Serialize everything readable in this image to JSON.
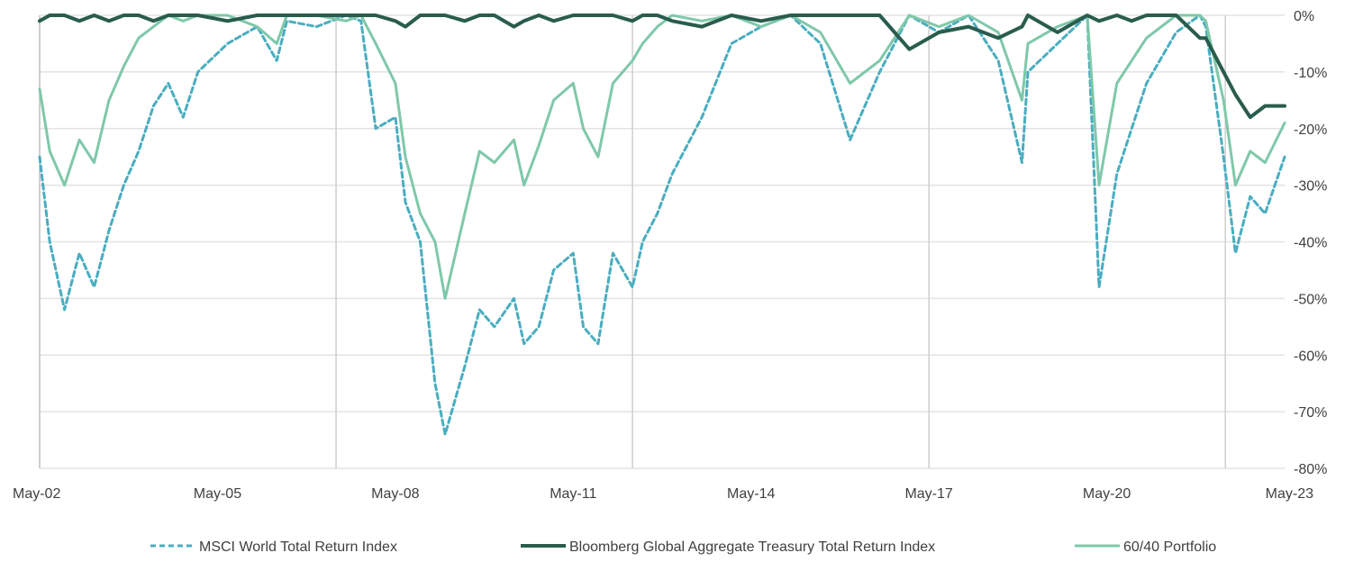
{
  "chart_data": {
    "type": "line",
    "title": "",
    "xlabel": "",
    "ylabel": "",
    "x_ticks": [
      "May-02",
      "May-05",
      "May-08",
      "May-11",
      "May-14",
      "May-17",
      "May-20",
      "May-23"
    ],
    "y_ticks": [
      "0%",
      "-10%",
      "-20%",
      "-30%",
      "-40%",
      "-50%",
      "-60%",
      "-70%",
      "-80%"
    ],
    "y_tick_values": [
      0,
      -10,
      -20,
      -30,
      -40,
      -50,
      -60,
      -70,
      -80
    ],
    "ylim": [
      -80,
      0
    ],
    "xlim": [
      2002.33,
      2023.33
    ],
    "grid": "horizontal",
    "legend_position": "bottom",
    "x": [
      2002.33,
      2002.5,
      2002.75,
      2003.0,
      2003.25,
      2003.5,
      2003.75,
      2004.0,
      2004.25,
      2004.5,
      2004.75,
      2005.0,
      2005.5,
      2006.0,
      2006.33,
      2006.5,
      2007.0,
      2007.5,
      2007.75,
      2008.0,
      2008.33,
      2008.5,
      2008.75,
      2009.0,
      2009.17,
      2009.5,
      2009.75,
      2010.0,
      2010.33,
      2010.5,
      2010.75,
      2011.0,
      2011.33,
      2011.5,
      2011.75,
      2012.0,
      2012.33,
      2012.5,
      2012.75,
      2013.0,
      2013.5,
      2014.0,
      2014.5,
      2015.0,
      2015.5,
      2016.0,
      2016.5,
      2017.0,
      2017.5,
      2018.0,
      2018.5,
      2018.9,
      2019.0,
      2019.5,
      2020.0,
      2020.2,
      2020.5,
      2020.75,
      2021.0,
      2021.5,
      2021.9,
      2022.0,
      2022.3,
      2022.5,
      2022.75,
      2023.0,
      2023.33
    ],
    "series": [
      {
        "name": "MSCI World Total Return Index",
        "color": "#4aadbf",
        "dash": "dashed",
        "values": [
          -25,
          -40,
          -52,
          -42,
          -48,
          -38,
          -30,
          -24,
          -16,
          -12,
          -18,
          -10,
          -5,
          -2,
          -8,
          -1,
          -2,
          0,
          -1,
          -20,
          -18,
          -33,
          -40,
          -65,
          -74,
          -62,
          -52,
          -55,
          -50,
          -58,
          -55,
          -45,
          -42,
          -55,
          -58,
          -42,
          -48,
          -40,
          -35,
          -28,
          -18,
          -5,
          -2,
          0,
          -5,
          -22,
          -10,
          0,
          -3,
          0,
          -8,
          -26,
          -10,
          -5,
          0,
          -48,
          -28,
          -20,
          -12,
          -3,
          0,
          -2,
          -25,
          -42,
          -32,
          -35,
          -25
        ]
      },
      {
        "name": "Bloomberg Global Aggregate Treasury Total Return Index",
        "color": "#2a5c4e",
        "dash": "solid",
        "values": [
          -1,
          0,
          0,
          -1,
          0,
          -1,
          0,
          0,
          -1,
          0,
          0,
          0,
          -1,
          0,
          0,
          0,
          0,
          0,
          0,
          0,
          -1,
          -2,
          0,
          0,
          0,
          -1,
          0,
          0,
          -2,
          -1,
          0,
          -1,
          0,
          0,
          0,
          0,
          -1,
          0,
          0,
          -1,
          -2,
          0,
          -1,
          0,
          0,
          0,
          0,
          -6,
          -3,
          -2,
          -4,
          -2,
          0,
          -3,
          0,
          -1,
          0,
          -1,
          0,
          0,
          -4,
          -4,
          -10,
          -14,
          -18,
          -16,
          -16
        ]
      },
      {
        "name": "60/40 Portfolio",
        "color": "#7fc8a9",
        "dash": "solid",
        "values": [
          -13,
          -24,
          -30,
          -22,
          -26,
          -15,
          -9,
          -4,
          -2,
          0,
          -1,
          0,
          0,
          -2,
          -5,
          0,
          0,
          -1,
          0,
          -5,
          -12,
          -25,
          -35,
          -40,
          -50,
          -35,
          -24,
          -26,
          -22,
          -30,
          -23,
          -15,
          -12,
          -20,
          -25,
          -12,
          -8,
          -5,
          -2,
          0,
          -1,
          0,
          -2,
          0,
          -3,
          -12,
          -8,
          0,
          -2,
          0,
          -3,
          -15,
          -5,
          -2,
          0,
          -30,
          -12,
          -8,
          -4,
          0,
          0,
          -1,
          -15,
          -30,
          -24,
          -26,
          -19
        ]
      }
    ]
  }
}
